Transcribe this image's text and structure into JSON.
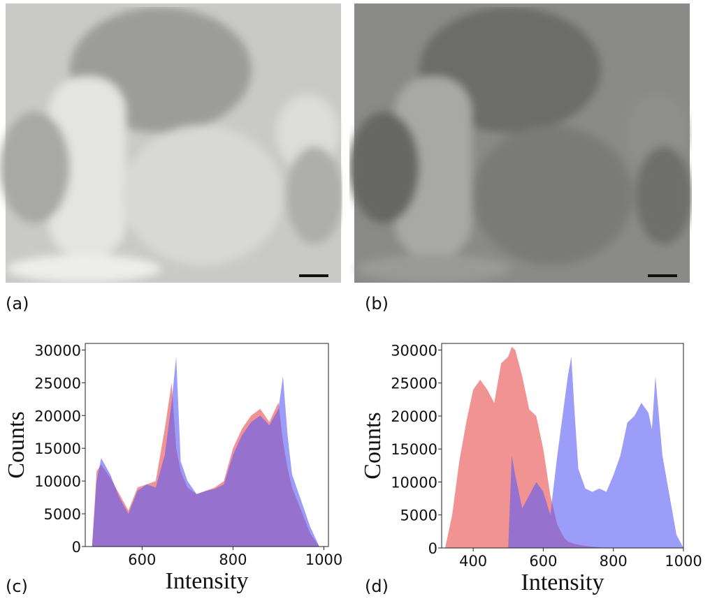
{
  "panel_labels": [
    "(a)",
    "(b)",
    "(c)",
    "(d)"
  ],
  "chart_data": [
    {
      "type": "area",
      "xlabel": "Intensity",
      "ylabel": "Counts",
      "x": [
        490,
        500,
        510,
        530,
        550,
        570,
        590,
        610,
        630,
        650,
        665,
        675,
        685,
        700,
        720,
        740,
        760,
        780,
        800,
        820,
        840,
        860,
        880,
        900,
        910,
        920,
        930,
        950,
        970,
        990
      ],
      "series": [
        {
          "color": "#f08080",
          "values": [
            0,
            11500,
            12500,
            10500,
            8000,
            5500,
            9000,
            9500,
            10000,
            18000,
            25000,
            15000,
            11500,
            9000,
            8000,
            8500,
            9000,
            10000,
            15000,
            18000,
            20000,
            21000,
            19000,
            22000,
            16000,
            12000,
            9000,
            5500,
            2000,
            0
          ]
        },
        {
          "color": "#5a5af5",
          "values": [
            0,
            10000,
            13500,
            11000,
            7500,
            5000,
            8500,
            9500,
            9000,
            14000,
            22000,
            29000,
            13000,
            10000,
            8000,
            8500,
            8800,
            9500,
            14000,
            17000,
            19000,
            20000,
            18500,
            21000,
            26000,
            17000,
            11000,
            7000,
            3000,
            0
          ]
        }
      ],
      "xlim": [
        475,
        1010
      ],
      "xticks": [
        600,
        800,
        1000
      ],
      "ylim": [
        0,
        31000
      ],
      "yticks": [
        0,
        5000,
        10000,
        15000,
        20000,
        25000,
        30000
      ]
    },
    {
      "type": "area",
      "xlabel": "Intensity",
      "ylabel": "Counts",
      "x": [
        320,
        340,
        360,
        380,
        400,
        420,
        440,
        460,
        480,
        500,
        510,
        520,
        540,
        560,
        580,
        600,
        620,
        640,
        660,
        670,
        680,
        690,
        700,
        720,
        740,
        760,
        780,
        800,
        820,
        840,
        860,
        880,
        900,
        910,
        920,
        930,
        940,
        960,
        980,
        1000
      ],
      "series": [
        {
          "color": "#f08080",
          "values": [
            0,
            5000,
            13000,
            19000,
            24000,
            25500,
            24000,
            22000,
            28000,
            29000,
            30500,
            30000,
            26000,
            21000,
            20000,
            15000,
            8000,
            3500,
            1500,
            1000,
            800,
            600,
            500,
            300,
            200,
            100,
            0,
            0,
            0,
            0,
            0,
            0,
            0,
            0,
            0,
            0,
            0,
            0,
            0,
            0
          ]
        },
        {
          "color": "#5a5af5",
          "values": [
            0,
            0,
            0,
            0,
            0,
            0,
            0,
            0,
            0,
            0,
            14000,
            11000,
            6000,
            8000,
            10000,
            8500,
            5000,
            14000,
            22000,
            26000,
            29000,
            20000,
            12000,
            9000,
            8500,
            9000,
            8500,
            11000,
            14000,
            19000,
            20000,
            22000,
            20500,
            18000,
            26000,
            20000,
            14000,
            8000,
            2000,
            0
          ]
        }
      ],
      "xlim": [
        310,
        1000
      ],
      "xticks": [
        400,
        600,
        800,
        1000
      ],
      "ylim": [
        0,
        31000
      ],
      "yticks": [
        0,
        5000,
        10000,
        15000,
        20000,
        25000,
        30000
      ]
    }
  ]
}
